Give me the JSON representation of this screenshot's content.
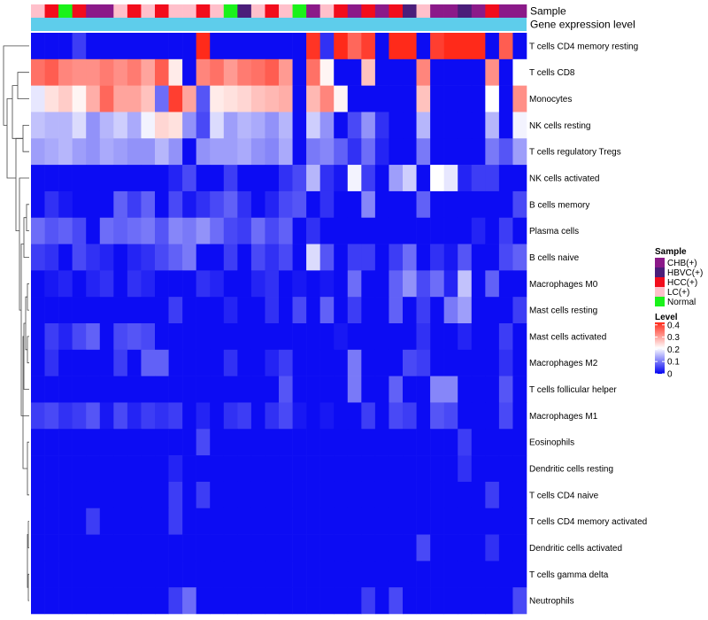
{
  "chart_data": {
    "type": "heatmap",
    "title": "",
    "annotation_tracks": [
      "Sample",
      "Gene expression level"
    ],
    "legend_sample": {
      "title": "Sample",
      "entries": [
        {
          "label": "CHB(+)",
          "color": "#8B1A89"
        },
        {
          "label": "HBVC(+)",
          "color": "#4B1E7A"
        },
        {
          "label": "HCC(+)",
          "color": "#F20D1C"
        },
        {
          "label": "LC(+)",
          "color": "#FFC0CB"
        },
        {
          "label": "Normal",
          "color": "#1AF21A"
        }
      ]
    },
    "legend_level": {
      "title": "Level",
      "ticks": [
        "0.4",
        "0.3",
        "0.2",
        "0.1",
        "0"
      ],
      "tick_values": [
        0.4,
        0.3,
        0.2,
        0.1,
        0
      ],
      "range": [
        0,
        0.42
      ],
      "colors": {
        "low": "#0000F2",
        "mid": "#FFFFFF",
        "high": "#FF2A1A"
      },
      "midpoint": 0.21
    },
    "gene_level_color": "#5ECDEB",
    "sample_groups": [
      "LC(+)",
      "HCC(+)",
      "Normal",
      "HCC(+)",
      "CHB(+)",
      "CHB(+)",
      "LC(+)",
      "HCC(+)",
      "LC(+)",
      "HCC(+)",
      "LC(+)",
      "LC(+)",
      "HCC(+)",
      "LC(+)",
      "Normal",
      "HBVC(+)",
      "LC(+)",
      "HCC(+)",
      "LC(+)",
      "Normal",
      "CHB(+)",
      "LC(+)",
      "HCC(+)",
      "CHB(+)",
      "HCC(+)",
      "CHB(+)",
      "HCC(+)",
      "HBVC(+)",
      "LC(+)",
      "CHB(+)",
      "CHB(+)",
      "HBVC(+)",
      "CHB(+)",
      "HCC(+)",
      "CHB(+)",
      "CHB(+)"
    ],
    "rows": [
      "T cells CD4 memory resting",
      "T cells CD8",
      "Monocytes",
      "NK cells resting",
      "T cells regulatory  Tregs",
      "NK cells activated",
      "B cells memory",
      "Plasma cells",
      "B cells naive",
      "Macrophages M0",
      "Mast cells resting",
      "Mast cells activated",
      "Macrophages M2",
      "T cells follicular helper",
      "Macrophages M1",
      "Eosinophils",
      "Dendritic cells resting",
      "T cells CD4 naive",
      "T cells CD4 memory activated",
      "Dendritic cells activated",
      "T cells gamma delta",
      "Neutrophils"
    ],
    "values": [
      [
        0.01,
        0.01,
        0.01,
        0.05,
        0.01,
        0.01,
        0.01,
        0.01,
        0.01,
        0.01,
        0.01,
        0.01,
        0.42,
        0.01,
        0.01,
        0.01,
        0.01,
        0.01,
        0.01,
        0.01,
        0.41,
        0.04,
        0.42,
        0.36,
        0.4,
        0.01,
        0.42,
        0.42,
        0.01,
        0.4,
        0.42,
        0.42,
        0.42,
        0.01,
        0.37,
        0.01
      ],
      [
        0.35,
        0.37,
        0.33,
        0.32,
        0.32,
        0.34,
        0.32,
        0.34,
        0.3,
        0.37,
        0.23,
        0.01,
        0.33,
        0.35,
        0.31,
        0.34,
        0.35,
        0.37,
        0.31,
        0.01,
        0.35,
        0.22,
        0.01,
        0.01,
        0.27,
        0.01,
        0.01,
        0.01,
        0.33,
        0.01,
        0.01,
        0.01,
        0.01,
        0.32,
        0.01,
        0.21
      ],
      [
        0.19,
        0.24,
        0.26,
        0.22,
        0.29,
        0.36,
        0.3,
        0.3,
        0.27,
        0.09,
        0.4,
        0.3,
        0.07,
        0.23,
        0.24,
        0.25,
        0.27,
        0.28,
        0.29,
        0.01,
        0.28,
        0.33,
        0.22,
        0.01,
        0.01,
        0.01,
        0.01,
        0.01,
        0.27,
        0.01,
        0.01,
        0.01,
        0.01,
        0.21,
        0.01,
        0.32
      ],
      [
        0.16,
        0.15,
        0.15,
        0.18,
        0.12,
        0.15,
        0.17,
        0.14,
        0.2,
        0.25,
        0.24,
        0.12,
        0.06,
        0.18,
        0.13,
        0.15,
        0.14,
        0.12,
        0.15,
        0.01,
        0.17,
        0.12,
        0.01,
        0.06,
        0.12,
        0.04,
        0.01,
        0.01,
        0.15,
        0.01,
        0.01,
        0.01,
        0.01,
        0.15,
        0.01,
        0.2
      ],
      [
        0.13,
        0.14,
        0.15,
        0.13,
        0.12,
        0.14,
        0.13,
        0.12,
        0.12,
        0.15,
        0.12,
        0.01,
        0.12,
        0.13,
        0.13,
        0.14,
        0.12,
        0.11,
        0.14,
        0.01,
        0.1,
        0.11,
        0.08,
        0.04,
        0.09,
        0.03,
        0.01,
        0.01,
        0.1,
        0.01,
        0.01,
        0.01,
        0.01,
        0.1,
        0.07,
        0.13
      ],
      [
        0.01,
        0.01,
        0.01,
        0.01,
        0.01,
        0.01,
        0.01,
        0.01,
        0.01,
        0.01,
        0.03,
        0.06,
        0.01,
        0.01,
        0.05,
        0.01,
        0.01,
        0.01,
        0.04,
        0.06,
        0.15,
        0.04,
        0.02,
        0.2,
        0.05,
        0.01,
        0.13,
        0.17,
        0.01,
        0.21,
        0.19,
        0.03,
        0.05,
        0.05,
        0.01,
        0.01
      ],
      [
        0.01,
        0.04,
        0.02,
        0.01,
        0.01,
        0.01,
        0.08,
        0.05,
        0.08,
        0.01,
        0.06,
        0.02,
        0.04,
        0.06,
        0.08,
        0.04,
        0.01,
        0.03,
        0.06,
        0.07,
        0.01,
        0.04,
        0.01,
        0.01,
        0.11,
        0.01,
        0.01,
        0.01,
        0.08,
        0.01,
        0.01,
        0.01,
        0.01,
        0.01,
        0.01,
        0.06
      ],
      [
        0.09,
        0.07,
        0.08,
        0.06,
        0.01,
        0.09,
        0.08,
        0.09,
        0.1,
        0.07,
        0.11,
        0.1,
        0.12,
        0.09,
        0.06,
        0.05,
        0.09,
        0.06,
        0.08,
        0.01,
        0.04,
        0.01,
        0.01,
        0.01,
        0.01,
        0.01,
        0.01,
        0.01,
        0.01,
        0.01,
        0.01,
        0.01,
        0.03,
        0.01,
        0.05,
        0.01
      ],
      [
        0.05,
        0.04,
        0.01,
        0.06,
        0.04,
        0.03,
        0.01,
        0.03,
        0.04,
        0.06,
        0.08,
        0.1,
        0.01,
        0.01,
        0.05,
        0.01,
        0.06,
        0.04,
        0.06,
        0.01,
        0.18,
        0.07,
        0.01,
        0.05,
        0.05,
        0.01,
        0.05,
        0.09,
        0.01,
        0.04,
        0.02,
        0.07,
        0.01,
        0.01,
        0.06,
        0.08
      ],
      [
        0.01,
        0.02,
        0.03,
        0.01,
        0.03,
        0.04,
        0.01,
        0.04,
        0.03,
        0.01,
        0.01,
        0.01,
        0.04,
        0.03,
        0.01,
        0.01,
        0.03,
        0.04,
        0.01,
        0.02,
        0.01,
        0.02,
        0.01,
        0.09,
        0.01,
        0.01,
        0.08,
        0.12,
        0.06,
        0.09,
        0.03,
        0.16,
        0.01,
        0.08,
        0.01,
        0.01
      ],
      [
        0.01,
        0.01,
        0.01,
        0.01,
        0.01,
        0.01,
        0.01,
        0.01,
        0.01,
        0.01,
        0.05,
        0.01,
        0.01,
        0.01,
        0.03,
        0.01,
        0.01,
        0.04,
        0.01,
        0.06,
        0.01,
        0.08,
        0.01,
        0.05,
        0.01,
        0.01,
        0.08,
        0.01,
        0.05,
        0.01,
        0.1,
        0.13,
        0.01,
        0.01,
        0.01,
        0.05
      ],
      [
        0.01,
        0.05,
        0.03,
        0.06,
        0.08,
        0.01,
        0.06,
        0.07,
        0.06,
        0.01,
        0.01,
        0.01,
        0.01,
        0.01,
        0.01,
        0.01,
        0.01,
        0.01,
        0.01,
        0.01,
        0.01,
        0.01,
        0.02,
        0.01,
        0.01,
        0.01,
        0.01,
        0.01,
        0.04,
        0.01,
        0.01,
        0.03,
        0.01,
        0.01,
        0.05,
        0.01
      ],
      [
        0.01,
        0.04,
        0.01,
        0.01,
        0.01,
        0.01,
        0.05,
        0.01,
        0.08,
        0.08,
        0.01,
        0.01,
        0.01,
        0.01,
        0.04,
        0.01,
        0.01,
        0.03,
        0.05,
        0.01,
        0.01,
        0.01,
        0.01,
        0.1,
        0.01,
        0.01,
        0.01,
        0.06,
        0.05,
        0.01,
        0.01,
        0.01,
        0.01,
        0.01,
        0.04,
        0.01
      ],
      [
        0.01,
        0.01,
        0.01,
        0.01,
        0.01,
        0.01,
        0.01,
        0.01,
        0.01,
        0.01,
        0.01,
        0.01,
        0.01,
        0.01,
        0.01,
        0.01,
        0.01,
        0.01,
        0.07,
        0.01,
        0.01,
        0.01,
        0.01,
        0.1,
        0.01,
        0.01,
        0.08,
        0.01,
        0.01,
        0.11,
        0.11,
        0.01,
        0.01,
        0.01,
        0.07,
        0.01
      ],
      [
        0.05,
        0.06,
        0.04,
        0.05,
        0.07,
        0.02,
        0.06,
        0.03,
        0.05,
        0.04,
        0.05,
        0.01,
        0.03,
        0.01,
        0.04,
        0.05,
        0.01,
        0.04,
        0.06,
        0.02,
        0.01,
        0.02,
        0.01,
        0.01,
        0.05,
        0.01,
        0.06,
        0.05,
        0.01,
        0.07,
        0.06,
        0.01,
        0.01,
        0.01,
        0.06,
        0.01
      ],
      [
        0.01,
        0.01,
        0.01,
        0.01,
        0.01,
        0.01,
        0.01,
        0.01,
        0.01,
        0.01,
        0.01,
        0.01,
        0.06,
        0.01,
        0.01,
        0.01,
        0.01,
        0.01,
        0.01,
        0.01,
        0.01,
        0.01,
        0.01,
        0.01,
        0.01,
        0.01,
        0.01,
        0.01,
        0.01,
        0.01,
        0.01,
        0.05,
        0.01,
        0.01,
        0.01,
        0.01
      ],
      [
        0.01,
        0.01,
        0.01,
        0.01,
        0.01,
        0.01,
        0.01,
        0.01,
        0.01,
        0.01,
        0.03,
        0.01,
        0.01,
        0.01,
        0.01,
        0.01,
        0.01,
        0.01,
        0.01,
        0.01,
        0.01,
        0.01,
        0.01,
        0.01,
        0.01,
        0.01,
        0.01,
        0.01,
        0.01,
        0.01,
        0.01,
        0.04,
        0.01,
        0.01,
        0.01,
        0.01
      ],
      [
        0.01,
        0.01,
        0.01,
        0.01,
        0.01,
        0.01,
        0.01,
        0.01,
        0.01,
        0.01,
        0.05,
        0.01,
        0.05,
        0.01,
        0.01,
        0.01,
        0.01,
        0.01,
        0.01,
        0.01,
        0.01,
        0.01,
        0.01,
        0.01,
        0.01,
        0.01,
        0.01,
        0.01,
        0.01,
        0.01,
        0.01,
        0.01,
        0.01,
        0.05,
        0.01,
        0.01
      ],
      [
        0.01,
        0.01,
        0.01,
        0.01,
        0.05,
        0.01,
        0.01,
        0.01,
        0.01,
        0.01,
        0.05,
        0.01,
        0.01,
        0.01,
        0.01,
        0.01,
        0.01,
        0.01,
        0.01,
        0.01,
        0.01,
        0.01,
        0.01,
        0.01,
        0.01,
        0.01,
        0.01,
        0.01,
        0.01,
        0.01,
        0.01,
        0.01,
        0.01,
        0.01,
        0.01,
        0.01
      ],
      [
        0.01,
        0.01,
        0.01,
        0.01,
        0.01,
        0.01,
        0.01,
        0.01,
        0.01,
        0.01,
        0.01,
        0.01,
        0.01,
        0.01,
        0.01,
        0.01,
        0.01,
        0.01,
        0.01,
        0.01,
        0.01,
        0.01,
        0.01,
        0.01,
        0.01,
        0.01,
        0.01,
        0.01,
        0.06,
        0.01,
        0.01,
        0.01,
        0.01,
        0.04,
        0.01,
        0.01
      ],
      [
        0.01,
        0.01,
        0.01,
        0.01,
        0.01,
        0.01,
        0.01,
        0.01,
        0.01,
        0.01,
        0.01,
        0.01,
        0.01,
        0.01,
        0.01,
        0.01,
        0.01,
        0.01,
        0.01,
        0.01,
        0.01,
        0.01,
        0.01,
        0.01,
        0.01,
        0.01,
        0.01,
        0.01,
        0.01,
        0.01,
        0.01,
        0.01,
        0.01,
        0.01,
        0.01,
        0.01
      ],
      [
        0.01,
        0.01,
        0.01,
        0.01,
        0.01,
        0.01,
        0.01,
        0.01,
        0.01,
        0.01,
        0.05,
        0.09,
        0.01,
        0.01,
        0.01,
        0.01,
        0.01,
        0.01,
        0.01,
        0.01,
        0.01,
        0.01,
        0.01,
        0.01,
        0.05,
        0.01,
        0.06,
        0.01,
        0.01,
        0.01,
        0.01,
        0.01,
        0.01,
        0.01,
        0.01,
        0.06
      ]
    ]
  }
}
